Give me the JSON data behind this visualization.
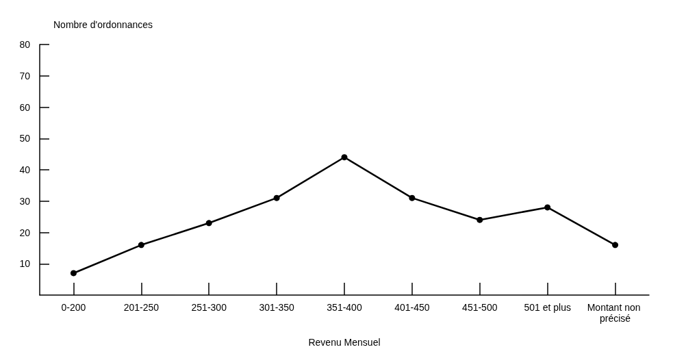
{
  "chart_data": {
    "type": "line",
    "xlabel": "Revenu Mensuel",
    "ylabel": "Nombre d'ordonnances",
    "categories": [
      "0-200",
      "201-250",
      "251-300",
      "301-350",
      "351-400",
      "401-450",
      "451-500",
      "501 et plus",
      "Montant non précisé"
    ],
    "series": [
      {
        "color": "#000000",
        "values": [
          7,
          16,
          23,
          31,
          44,
          31,
          24,
          28,
          16
        ]
      }
    ],
    "ylim": [
      0,
      80
    ],
    "yticks": [
      10,
      20,
      30,
      40,
      50,
      60,
      70,
      80
    ],
    "grid": false,
    "marker": "circle",
    "line_style": "solid"
  }
}
